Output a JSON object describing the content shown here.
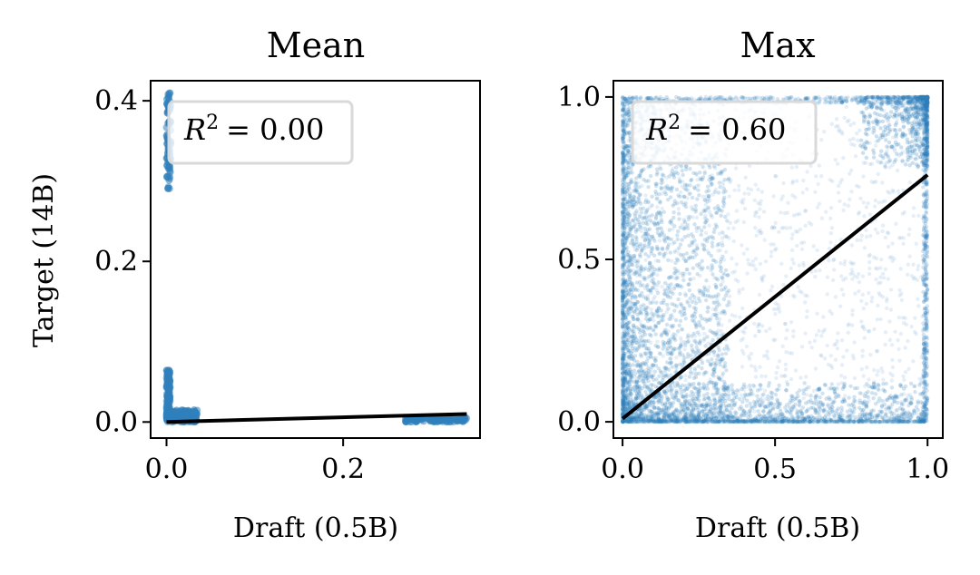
{
  "colors": {
    "scatter": "#2f7fbc",
    "fit_line": "#000000",
    "frame": "#000000",
    "legend_edge": "#d9d9d9"
  },
  "chart_data": [
    {
      "type": "scatter",
      "title": "Mean",
      "xlabel": "Draft (0.5B)",
      "ylabel": "Target (14B)",
      "xlim": [
        -0.018,
        0.355
      ],
      "ylim": [
        -0.02,
        0.425
      ],
      "xticks": [
        0.0,
        0.2
      ],
      "xtick_labels": [
        "0.0",
        "0.2"
      ],
      "yticks": [
        0.0,
        0.2,
        0.4
      ],
      "ytick_labels": [
        "0.0",
        "0.2",
        "0.4"
      ],
      "annotation": {
        "symbol": "R",
        "superscript": "2",
        "equals": "= 0.00",
        "value": 0.0
      },
      "fit_line": {
        "x": [
          0.0,
          0.34
        ],
        "y": [
          0.0,
          0.01
        ]
      },
      "grid": false,
      "point_clusters": [
        {
          "x_range": [
            0.0,
            0.005
          ],
          "y_range": [
            0.29,
            0.41
          ],
          "n": 90
        },
        {
          "x_range": [
            0.0,
            0.004
          ],
          "y_range": [
            0.0,
            0.065
          ],
          "n": 130
        },
        {
          "x_range": [
            0.0,
            0.035
          ],
          "y_range": [
            0.0,
            0.015
          ],
          "n": 160
        },
        {
          "x_range": [
            0.27,
            0.34
          ],
          "y_range": [
            0.0,
            0.006
          ],
          "n": 120
        }
      ]
    },
    {
      "type": "scatter",
      "title": "Max",
      "xlabel": "Draft (0.5B)",
      "ylabel": "",
      "xlim": [
        -0.03,
        1.05
      ],
      "ylim": [
        -0.05,
        1.05
      ],
      "xticks": [
        0.0,
        0.5,
        1.0
      ],
      "xtick_labels": [
        "0.0",
        "0.5",
        "1.0"
      ],
      "yticks": [
        0.0,
        0.5,
        1.0
      ],
      "ytick_labels": [
        "0.0",
        "0.5",
        "1.0"
      ],
      "annotation": {
        "symbol": "R",
        "superscript": "2",
        "equals": "= 0.60",
        "value": 0.6
      },
      "fit_line": {
        "x": [
          0.0,
          1.0
        ],
        "y": [
          0.01,
          0.76
        ]
      },
      "grid": false,
      "point_density": "dense near x=0 and along y=0, cluster near (1,1), sparse elsewhere"
    }
  ]
}
